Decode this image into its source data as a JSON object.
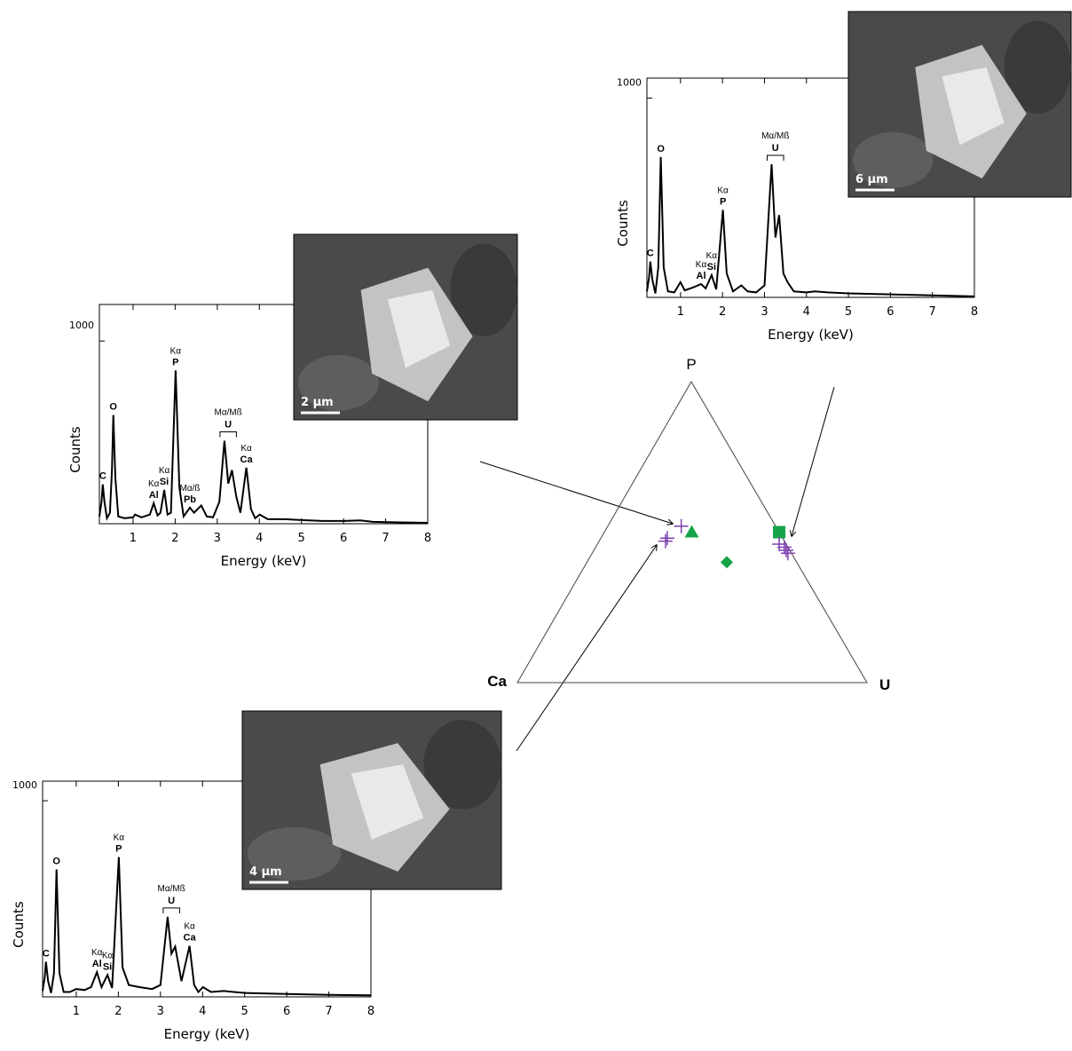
{
  "chart_data": [
    {
      "type": "line",
      "x_label": "Energy (keV)",
      "y_label": "Counts",
      "color": "#000000",
      "xlim": [
        0.2,
        8
      ],
      "ylim": [
        0,
        1200
      ],
      "xticks": [
        1,
        2,
        3,
        4,
        5,
        6,
        7,
        8
      ],
      "yticks": [
        1000
      ],
      "x": [
        0.2,
        0.25,
        0.28,
        0.32,
        0.38,
        0.45,
        0.5,
        0.53,
        0.58,
        0.65,
        0.8,
        1.0,
        1.05,
        1.2,
        1.4,
        1.49,
        1.58,
        1.65,
        1.74,
        1.82,
        1.9,
        2.01,
        2.1,
        2.2,
        2.35,
        2.45,
        2.62,
        2.75,
        2.9,
        3.05,
        3.17,
        3.26,
        3.35,
        3.45,
        3.55,
        3.69,
        3.8,
        3.9,
        4.01,
        4.2,
        4.6,
        5.0,
        5.5,
        6.0,
        6.4,
        6.7,
        7.2,
        8.0
      ],
      "values": [
        40,
        120,
        215,
        120,
        30,
        60,
        300,
        595,
        250,
        40,
        30,
        35,
        50,
        35,
        50,
        112,
        45,
        60,
        185,
        50,
        60,
        839,
        200,
        40,
        88,
        60,
        100,
        40,
        35,
        120,
        454,
        220,
        293,
        150,
        60,
        307,
        80,
        30,
        50,
        25,
        25,
        20,
        15,
        15,
        18,
        10,
        8,
        5
      ],
      "annotations": [
        {
          "element": "C",
          "x": 0.28
        },
        {
          "element": "O",
          "x": 0.53
        },
        {
          "element": "Al",
          "line": "Kα",
          "x": 1.49
        },
        {
          "element": "Si",
          "line": "Kα",
          "x": 1.74
        },
        {
          "element": "P",
          "line": "Kα",
          "x": 2.01
        },
        {
          "element": "Pb",
          "line": "Mα/ß",
          "x": 2.35
        },
        {
          "element": "U",
          "line": "Mα/Mß",
          "x_range": [
            3.17,
            3.35
          ]
        },
        {
          "element": "Ca",
          "line": "Kα",
          "x": 3.69
        }
      ],
      "inset": {
        "scale_bar": "2 µm"
      }
    },
    {
      "type": "line",
      "x_label": "Energy (keV)",
      "y_label": "Counts",
      "color": "#000000",
      "xlim": [
        0.2,
        8
      ],
      "ylim": [
        0,
        1100
      ],
      "xticks": [
        1,
        2,
        3,
        4,
        5,
        6,
        7,
        8
      ],
      "yticks": [
        1000
      ],
      "x": [
        0.2,
        0.25,
        0.28,
        0.33,
        0.4,
        0.47,
        0.53,
        0.6,
        0.7,
        0.85,
        1.0,
        1.1,
        1.3,
        1.49,
        1.6,
        1.74,
        1.85,
        2.01,
        2.1,
        2.25,
        2.45,
        2.6,
        2.8,
        3.0,
        3.17,
        3.26,
        3.35,
        3.45,
        3.55,
        3.7,
        4.0,
        4.2,
        4.5,
        5.0,
        6.0,
        7.0,
        8.0
      ],
      "values": [
        30,
        100,
        180,
        90,
        20,
        150,
        704,
        150,
        30,
        25,
        76,
        35,
        50,
        67,
        45,
        112,
        40,
        439,
        120,
        30,
        60,
        30,
        25,
        60,
        668,
        300,
        413,
        120,
        76,
        30,
        25,
        30,
        25,
        20,
        15,
        10,
        5
      ],
      "annotations": [
        {
          "element": "C",
          "x": 0.28
        },
        {
          "element": "O",
          "x": 0.53
        },
        {
          "element": "Al",
          "line": "Kα",
          "x": 1.49
        },
        {
          "element": "Si",
          "line": "Kα",
          "x": 1.74
        },
        {
          "element": "P",
          "line": "Kα",
          "x": 2.01
        },
        {
          "element": "U",
          "line": "Mα/Mß",
          "x_range": [
            3.17,
            3.35
          ]
        }
      ],
      "inset": {
        "scale_bar": "6 µm"
      }
    },
    {
      "type": "line",
      "x_label": "Energy (keV)",
      "y_label": "Counts",
      "color": "#000000",
      "xlim": [
        0.2,
        8
      ],
      "ylim": [
        0,
        1100
      ],
      "xticks": [
        1,
        2,
        3,
        4,
        5,
        6,
        7,
        8
      ],
      "yticks": [
        1000
      ],
      "x": [
        0.2,
        0.25,
        0.28,
        0.33,
        0.4,
        0.47,
        0.53,
        0.6,
        0.7,
        0.85,
        1.0,
        1.2,
        1.35,
        1.49,
        1.6,
        1.74,
        1.85,
        2.01,
        2.1,
        2.25,
        2.5,
        2.8,
        3.0,
        3.17,
        3.26,
        3.35,
        3.5,
        3.69,
        3.8,
        3.9,
        4.01,
        4.2,
        4.5,
        5.0,
        6.0,
        7.0,
        8.0
      ],
      "values": [
        30,
        100,
        179,
        80,
        20,
        120,
        650,
        120,
        25,
        25,
        40,
        35,
        50,
        126,
        50,
        112,
        45,
        713,
        150,
        60,
        50,
        40,
        60,
        408,
        220,
        256,
        80,
        260,
        60,
        25,
        50,
        25,
        30,
        20,
        15,
        10,
        8
      ],
      "annotations": [
        {
          "element": "C",
          "x": 0.28
        },
        {
          "element": "O",
          "x": 0.53
        },
        {
          "element": "Al",
          "line": "Kα",
          "x": 1.49
        },
        {
          "element": "Si",
          "line": "Kα",
          "x": 1.74
        },
        {
          "element": "P",
          "line": "Kα",
          "x": 2.01
        },
        {
          "element": "U",
          "line": "Mα/Mß",
          "x_range": [
            3.17,
            3.35
          ]
        },
        {
          "element": "Ca",
          "line": "Kα",
          "x": 3.69
        }
      ],
      "inset": {
        "scale_bar": "4 µm"
      }
    },
    {
      "type": "ternary",
      "vertices": {
        "top": "P",
        "left": "Ca",
        "right": "U"
      },
      "series": [
        {
          "marker": "triangle",
          "color": "#16a34a",
          "P": [
            0.5
          ],
          "U": [
            0.25
          ],
          "Ca": [
            0.25
          ]
        },
        {
          "marker": "square",
          "color": "#16a34a",
          "P": [
            0.5
          ],
          "U": [
            0.5
          ],
          "Ca": [
            0
          ]
        },
        {
          "marker": "diamond",
          "color": "#16a34a",
          "P": [
            0.4
          ],
          "U": [
            0.4
          ],
          "Ca": [
            0.2
          ]
        },
        {
          "marker": "plus",
          "color": "#7e3fb0",
          "P": [
            0.52,
            0.48,
            0.47,
            0.46,
            0.45,
            0.43,
            0.44
          ],
          "U": [
            0.21,
            0.19,
            0.19,
            0.52,
            0.54,
            0.56,
            0.55
          ],
          "Ca": [
            0.27,
            0.33,
            0.34,
            0.02,
            0.01,
            0.01,
            0.01
          ]
        }
      ]
    }
  ]
}
